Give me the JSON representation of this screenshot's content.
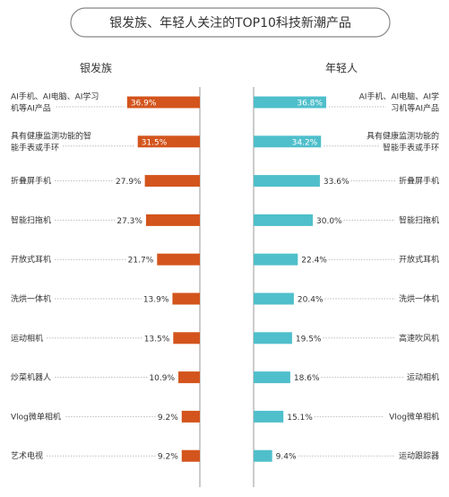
{
  "chart_data": {
    "type": "bar",
    "title": "银发族、年轻人关注的TOP10科技新潮产品",
    "colors": {
      "silver": "#d3541c",
      "young": "#4fbfcb",
      "axis": "#999999",
      "leader": "#bbbbbb"
    },
    "series": [
      {
        "name": "银发族",
        "categories": [
          [
            "AI手机、AI电脑、AI学习",
            "机等AI产品"
          ],
          [
            "具有健康监测功能的智",
            "能手表或手环"
          ],
          [
            "折叠屏手机"
          ],
          [
            "智能扫拖机"
          ],
          [
            "开放式耳机"
          ],
          [
            "洗烘一体机"
          ],
          [
            "运动相机"
          ],
          [
            "炒菜机器人"
          ],
          [
            "Vlog微单相机"
          ],
          [
            "艺术电视"
          ]
        ],
        "labels": [
          "36.9%",
          "31.5%",
          "27.9%",
          "27.3%",
          "21.7%",
          "13.9%",
          "13.5%",
          "10.9%",
          "9.2%",
          "9.2%"
        ],
        "values": [
          36.9,
          31.5,
          27.9,
          27.3,
          21.7,
          13.9,
          13.5,
          10.9,
          9.2,
          9.2
        ]
      },
      {
        "name": "年轻人",
        "categories": [
          [
            "AI手机、AI电脑、AI学",
            "习机等AI产品"
          ],
          [
            "具有健康监测功能的",
            "智能手表或手环"
          ],
          [
            "折叠屏手机"
          ],
          [
            "智能扫拖机"
          ],
          [
            "开放式耳机"
          ],
          [
            "洗烘一体机"
          ],
          [
            "高速吹风机"
          ],
          [
            "运动相机"
          ],
          [
            "Vlog微单相机"
          ],
          [
            "运动跟踪器"
          ]
        ],
        "labels": [
          "36.8%",
          "34.2%",
          "33.6%",
          "30.0%",
          "22.4%",
          "20.4%",
          "19.5%",
          "18.6%",
          "15.1%",
          "9.4%"
        ],
        "values": [
          36.8,
          34.2,
          33.6,
          30.0,
          22.4,
          20.4,
          19.5,
          18.6,
          15.1,
          9.4
        ]
      }
    ]
  }
}
